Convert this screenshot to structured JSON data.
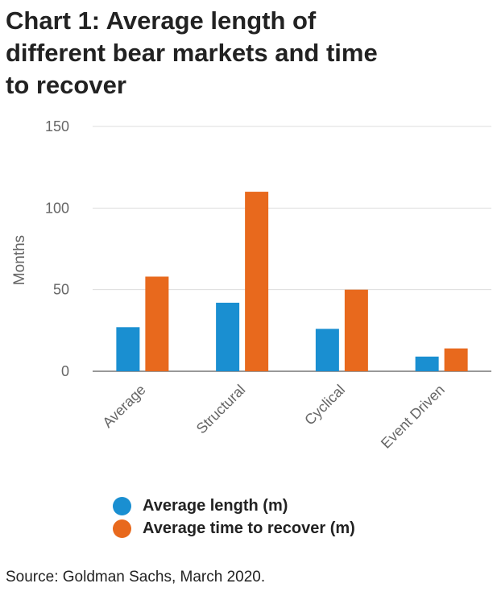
{
  "title_lines": [
    "Chart 1: Average length of",
    "different bear markets and time",
    "to recover"
  ],
  "source": "Source: Goldman Sachs, March 2020.",
  "colors": {
    "series1": "#1a8fd1",
    "series2": "#e8691d",
    "grid": "#dddddd",
    "axis": "#999999",
    "text": "#666666"
  },
  "chart_data": {
    "type": "bar",
    "title": "Chart 1: Average length of different bear markets and time to recover",
    "xlabel": "",
    "ylabel": "Months",
    "ylim": [
      0,
      150
    ],
    "yticks": [
      0,
      50,
      100,
      150
    ],
    "categories": [
      "Average",
      "Structural",
      "Cyclical",
      "Event Driven"
    ],
    "series": [
      {
        "name": "Average length (m)",
        "values": [
          27,
          42,
          26,
          9
        ]
      },
      {
        "name": "Average time to recover (m)",
        "values": [
          58,
          110,
          50,
          14
        ]
      }
    ],
    "grid": true,
    "legend_position": "bottom"
  }
}
